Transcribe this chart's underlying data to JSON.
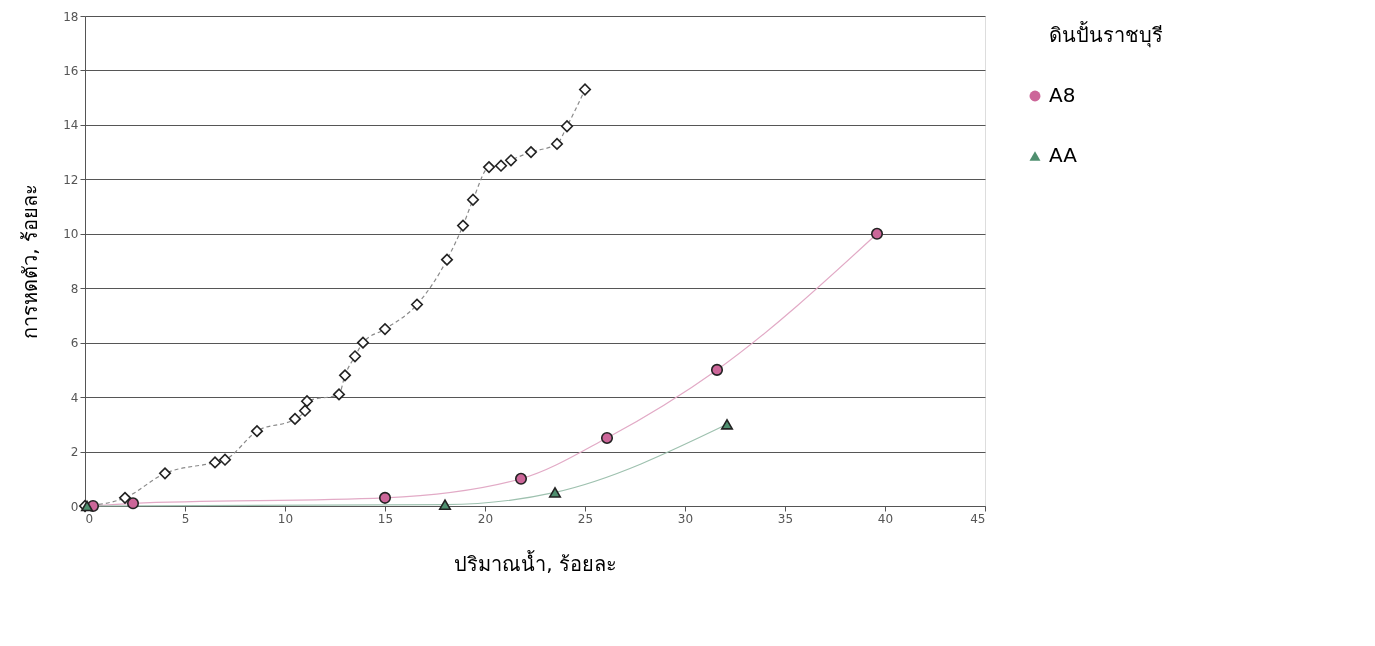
{
  "chart_data": {
    "type": "line",
    "xlabel": "ปริมาณน้ำ, ร้อยละ",
    "ylabel": "การหดตัว, ร้อยละ",
    "xlim": [
      0,
      45
    ],
    "xticks": [
      0,
      5,
      10,
      15,
      20,
      25,
      30,
      35,
      40,
      45
    ],
    "ylim": [
      0,
      18
    ],
    "yticks": [
      0,
      2,
      4,
      6,
      8,
      10,
      12,
      14,
      16,
      18
    ],
    "grid": "y",
    "legend": "right",
    "series": [
      {
        "name": "ดินปั้นราชบุรี",
        "color": "#ffffff",
        "marker": "diamond",
        "line_style": "dashed",
        "x": [
          0,
          2.0,
          4.0,
          6.5,
          7.0,
          8.6,
          10.5,
          11.0,
          11.1,
          12.7,
          13.0,
          13.5,
          13.9,
          15.0,
          16.6,
          18.1,
          18.9,
          19.4,
          20.2,
          20.8,
          21.3,
          22.3,
          23.6,
          24.1,
          25.0
        ],
        "values": [
          0,
          0.3,
          1.2,
          1.6,
          1.7,
          2.75,
          3.2,
          3.5,
          3.85,
          4.1,
          4.8,
          5.5,
          6.0,
          6.5,
          7.4,
          9.05,
          10.3,
          11.25,
          12.45,
          12.5,
          12.7,
          13.0,
          13.3,
          13.95,
          15.3
        ]
      },
      {
        "name": "A8",
        "color": "#cc6699",
        "marker": "circle",
        "line_style": "solid",
        "x": [
          0.4,
          2.4,
          15.0,
          21.8,
          26.1,
          31.6,
          39.6
        ],
        "values": [
          0,
          0.1,
          0.3,
          1.0,
          2.5,
          5.0,
          10.0
        ]
      },
      {
        "name": "AA",
        "color": "#4f8f6f",
        "marker": "triangle",
        "line_style": "solid",
        "x": [
          0.1,
          18.0,
          23.5,
          32.1
        ],
        "values": [
          0,
          0.05,
          0.5,
          3.0
        ]
      }
    ]
  }
}
